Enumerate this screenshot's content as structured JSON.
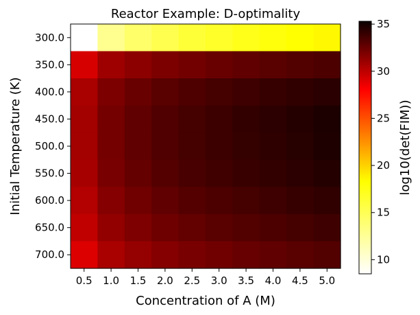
{
  "chart_data": {
    "type": "heatmap",
    "title": "Reactor Example: D-optimality",
    "xlabel": "Concentration of A (M)",
    "ylabel": "Initial Temperature (K)",
    "x_categories": [
      "0.5",
      "1.0",
      "1.5",
      "2.0",
      "2.5",
      "3.0",
      "3.5",
      "4.0",
      "4.5",
      "5.0"
    ],
    "y_categories": [
      "300.0",
      "350.0",
      "400.0",
      "450.0",
      "500.0",
      "550.0",
      "600.0",
      "650.0",
      "700.0"
    ],
    "values": [
      [
        8.5,
        11.5,
        12.5,
        13.2,
        13.8,
        14.2,
        14.6,
        15.0,
        15.3,
        15.6
      ],
      [
        27.0,
        29.5,
        30.3,
        31.0,
        31.4,
        31.8,
        32.2,
        32.5,
        32.8,
        33.1
      ],
      [
        29.0,
        31.0,
        31.8,
        32.5,
        33.0,
        33.4,
        33.7,
        34.0,
        34.3,
        34.6
      ],
      [
        29.3,
        31.3,
        32.2,
        32.9,
        33.4,
        33.8,
        34.2,
        34.5,
        34.8,
        35.2
      ],
      [
        29.3,
        31.3,
        32.2,
        32.9,
        33.4,
        33.8,
        34.1,
        34.4,
        34.7,
        35.1
      ],
      [
        29.1,
        31.1,
        32.0,
        32.7,
        33.2,
        33.6,
        33.9,
        34.2,
        34.5,
        34.8
      ],
      [
        28.6,
        30.6,
        31.5,
        32.2,
        32.7,
        33.1,
        33.4,
        33.7,
        34.0,
        34.3
      ],
      [
        28.0,
        30.0,
        30.9,
        31.6,
        32.1,
        32.5,
        32.8,
        33.1,
        33.4,
        33.7
      ],
      [
        26.8,
        29.0,
        29.9,
        30.6,
        31.1,
        31.5,
        31.9,
        32.2,
        32.5,
        32.8
      ]
    ],
    "colormap": "hot_r",
    "colorbar": {
      "label": "log10(det(FIM))",
      "range": [
        8.5,
        35.3
      ],
      "ticks": [
        "10",
        "15",
        "20",
        "25",
        "30",
        "35"
      ]
    },
    "grid": false
  }
}
